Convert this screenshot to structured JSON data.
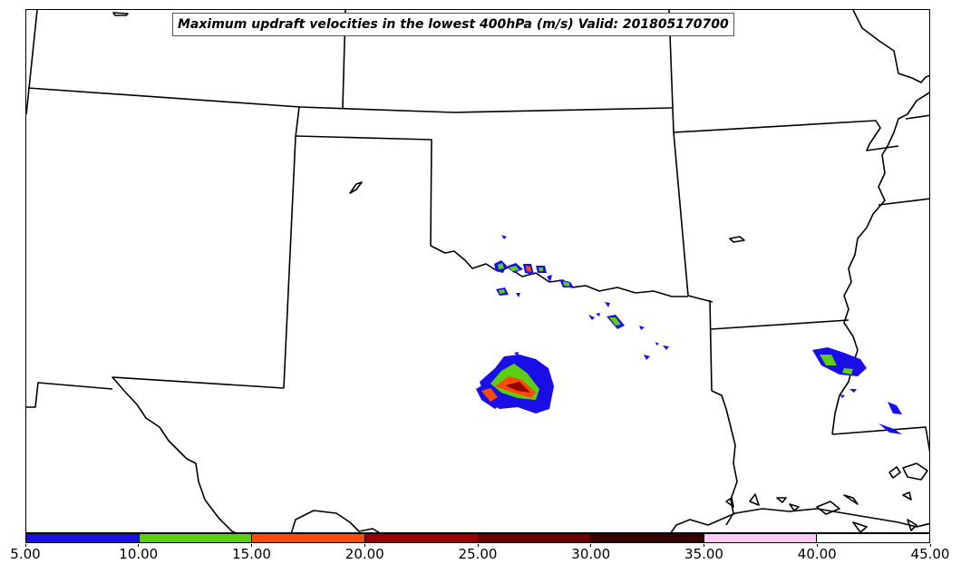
{
  "map": {
    "title": "Maximum updraft velocities in the lowest 400hPa (m/s) Valid: 201805170700"
  },
  "colorbar": {
    "ticks": [
      "5.00",
      "10.00",
      "15.00",
      "20.00",
      "25.00",
      "30.00",
      "35.00",
      "40.00",
      "45.00"
    ],
    "colors": [
      "#1a0ee6",
      "#5ccf12",
      "#ff4a0a",
      "#990000",
      "#6b0000",
      "#380000",
      "#fdcaf3",
      "#ffffff"
    ]
  }
}
